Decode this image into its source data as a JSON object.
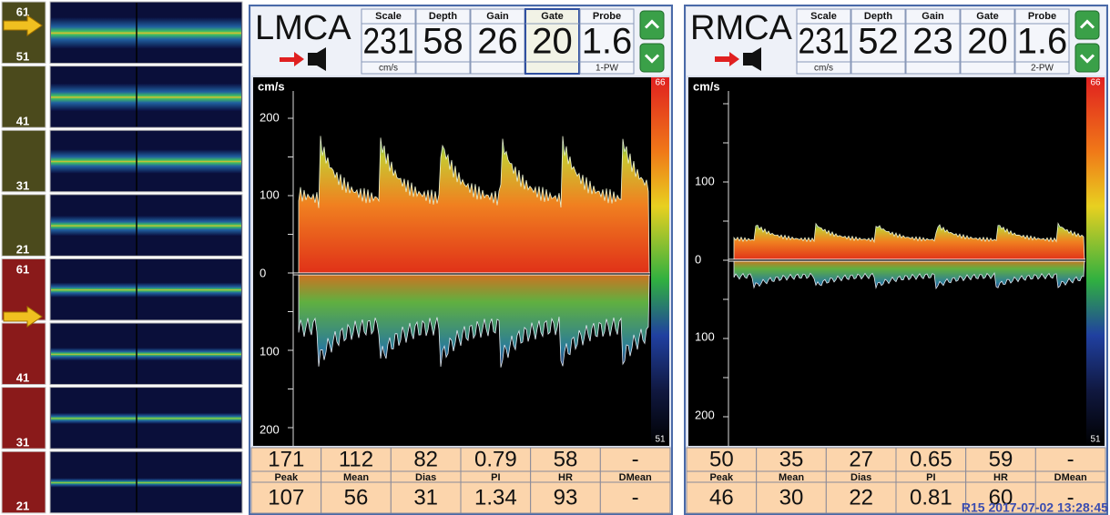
{
  "depth_strip": {
    "labels": [
      "61",
      "51",
      "41",
      "31",
      "21",
      "61",
      "41",
      "31",
      "21"
    ]
  },
  "panels": [
    {
      "vessel": "LMCA",
      "fields": [
        {
          "label": "Scale",
          "value": "231",
          "sub": "cm/s"
        },
        {
          "label": "Depth",
          "value": "58"
        },
        {
          "label": "Gain",
          "value": "26"
        },
        {
          "label": "Gate",
          "value": "20",
          "selected": true
        },
        {
          "label": "Probe",
          "value": "1.6",
          "sub": "1-PW"
        }
      ],
      "axis_unit": "cm/s",
      "scale_top": "66",
      "scale_bottom": "51",
      "ticks": [
        "200",
        "100",
        "0",
        "100",
        "200"
      ],
      "stats": {
        "row1": [
          "171",
          "112",
          "82",
          "0.79",
          "58",
          "-"
        ],
        "headers": [
          "Peak",
          "Mean",
          "Dias",
          "PI",
          "HR",
          "DMean"
        ],
        "row2": [
          "107",
          "56",
          "31",
          "1.34",
          "93",
          "-"
        ]
      }
    },
    {
      "vessel": "RMCA",
      "fields": [
        {
          "label": "Scale",
          "value": "231",
          "sub": "cm/s"
        },
        {
          "label": "Depth",
          "value": "52"
        },
        {
          "label": "Gain",
          "value": "23"
        },
        {
          "label": "Gate",
          "value": "20"
        },
        {
          "label": "Probe",
          "value": "1.6",
          "sub": "2-PW"
        }
      ],
      "axis_unit": "cm/s",
      "scale_top": "66",
      "scale_bottom": "51",
      "ticks": [
        "100",
        "0",
        "100",
        "200"
      ],
      "stats": {
        "row1": [
          "50",
          "35",
          "27",
          "0.65",
          "59",
          "-"
        ],
        "headers": [
          "Peak",
          "Mean",
          "Dias",
          "PI",
          "HR",
          "DMean"
        ],
        "row2": [
          "46",
          "30",
          "22",
          "0.81",
          "60",
          "-"
        ]
      }
    }
  ],
  "timestamp": "R15 2017-07-02 13:28:45"
}
